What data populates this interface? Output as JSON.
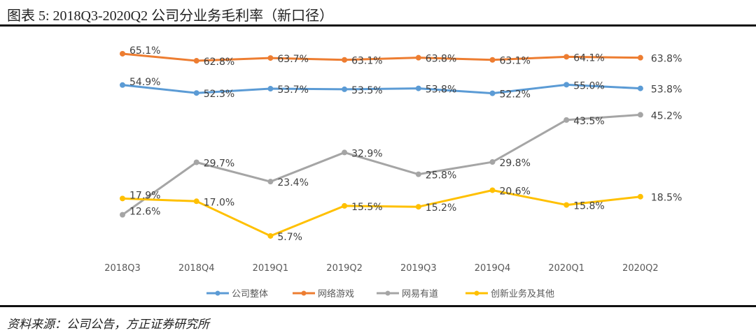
{
  "title": "图表 5:  2018Q3-2020Q2 公司分业务毛利率（新口径）",
  "source": "资料来源：公司公告，方正证券研究所",
  "chart_data": {
    "type": "line",
    "title": "2018Q3-2020Q2 公司分业务毛利率（新口径）",
    "categories": [
      "2018Q3",
      "2018Q4",
      "2019Q1",
      "2019Q2",
      "2019Q3",
      "2019Q4",
      "2020Q1",
      "2020Q2"
    ],
    "series": [
      {
        "name": "公司整体",
        "color": "#5b9bd5",
        "values": [
          54.9,
          52.3,
          53.7,
          53.5,
          53.8,
          52.2,
          55.0,
          53.8
        ]
      },
      {
        "name": "网络游戏",
        "color": "#ed7d31",
        "values": [
          65.1,
          62.8,
          63.7,
          63.1,
          63.8,
          63.1,
          64.1,
          63.8
        ]
      },
      {
        "name": "网易有道",
        "color": "#a5a5a5",
        "values": [
          12.6,
          29.7,
          23.4,
          32.9,
          25.8,
          29.8,
          43.5,
          45.2
        ]
      },
      {
        "name": "创新业务及其他",
        "color": "#ffc000",
        "values": [
          17.9,
          17.0,
          5.7,
          15.5,
          15.2,
          20.6,
          15.8,
          18.5
        ]
      }
    ],
    "value_format": "percent_1dp",
    "legend": "bottom",
    "grid": false,
    "ylabel": "",
    "xlabel": ""
  }
}
